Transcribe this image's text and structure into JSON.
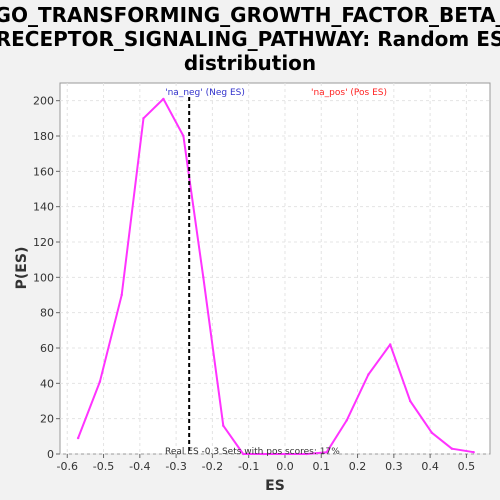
{
  "chart_data": {
    "type": "line",
    "title_lines": [
      "GO_TRANSFORMING_GROWTH_FACTOR_BETA_",
      "RECEPTOR_SIGNALING_PATHWAY: Random ES",
      "distribution"
    ],
    "xlabel": "ES",
    "ylabel": "P(ES)",
    "xlim": [
      -0.62,
      0.565
    ],
    "ylim": [
      0,
      210
    ],
    "xticks": [
      "-0.6",
      "-0.5",
      "-0.4",
      "-0.3",
      "-0.2",
      "-0.1",
      "0.0",
      "0.1",
      "0.2",
      "0.3",
      "0.4",
      "0.5"
    ],
    "yticks": [
      "0",
      "20",
      "40",
      "60",
      "80",
      "100",
      "120",
      "140",
      "160",
      "180",
      "200"
    ],
    "grid": true,
    "series": [
      {
        "color": "#ff33ff",
        "x": [
          -0.57,
          -0.51,
          -0.45,
          -0.39,
          -0.335,
          -0.28,
          -0.225,
          -0.17,
          -0.115,
          -0.06,
          0.0,
          0.06,
          0.115,
          0.17,
          0.23,
          0.29,
          0.345,
          0.405,
          0.46,
          0.52
        ],
        "y": [
          9,
          41,
          90,
          190,
          201,
          180,
          100,
          16,
          0,
          0,
          0,
          0,
          1,
          19,
          45,
          62,
          30,
          12,
          3,
          1
        ]
      }
    ],
    "real_es_line": {
      "x": -0.264,
      "color": "#000000"
    },
    "legend": [
      {
        "text": "'na_neg' (Neg ES)",
        "color": "#3333cc"
      },
      {
        "text": "'na_pos' (Pos ES)",
        "color": "#ff2222"
      }
    ],
    "annotation": "Real ES -0.3  Sets with pos scores: 17%"
  }
}
